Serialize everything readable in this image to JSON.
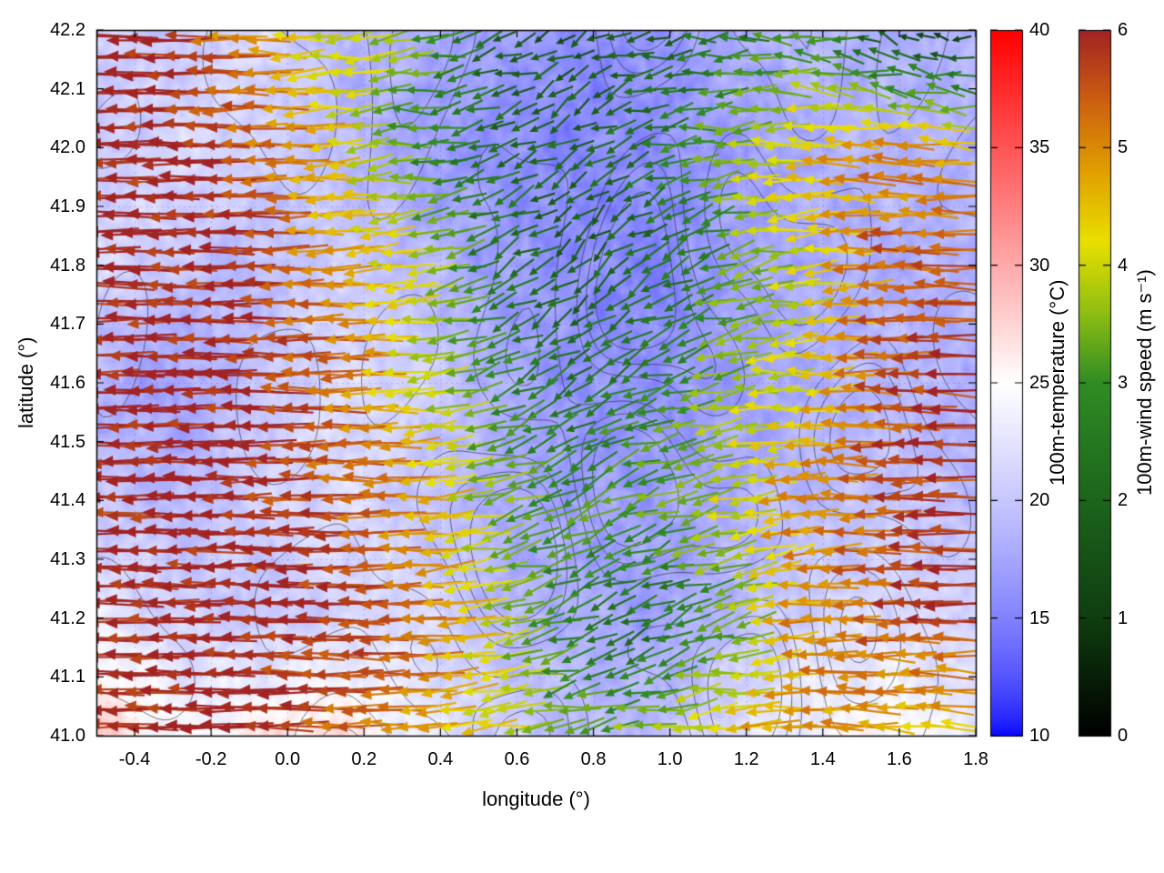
{
  "figure": {
    "background_color": "#ffffff",
    "plot_border_color": "#000000",
    "grid_color": "#8888cc"
  },
  "chart_data": {
    "type": "heatmap",
    "layers": [
      "temperature_heatmap",
      "terrain_contours",
      "wind_vectors"
    ],
    "title": "",
    "xlabel": "longitude (°)",
    "ylabel": "latitude (°)",
    "xlim": [
      -0.5,
      1.8
    ],
    "ylim": [
      41.0,
      42.2
    ],
    "grid": true,
    "x_ticks": [
      -0.4,
      -0.2,
      0.0,
      0.2,
      0.4,
      0.6,
      0.8,
      1.0,
      1.2,
      1.4,
      1.6,
      1.8
    ],
    "x_tick_labels": [
      "-0.4",
      "-0.2",
      "0.0",
      "0.2",
      "0.4",
      "0.6",
      "0.8",
      "1.0",
      "1.2",
      "1.4",
      "1.6",
      "1.8"
    ],
    "y_ticks": [
      41.0,
      41.1,
      41.2,
      41.3,
      41.4,
      41.5,
      41.6,
      41.7,
      41.8,
      41.9,
      42.0,
      42.1,
      42.2
    ],
    "y_tick_labels": [
      "41.0",
      "41.1",
      "41.2",
      "41.3",
      "41.4",
      "41.5",
      "41.6",
      "41.7",
      "41.8",
      "41.9",
      "42.0",
      "42.1",
      "42.2"
    ],
    "colorbars": [
      {
        "label": "100m-temperature (°C)",
        "range": [
          10,
          40
        ],
        "ticks": [
          10,
          15,
          20,
          25,
          30,
          35,
          40
        ],
        "tick_labels": [
          "10",
          "15",
          "20",
          "25",
          "30",
          "35",
          "40"
        ],
        "stops": [
          {
            "v": 10,
            "c": "#0000ff"
          },
          {
            "v": 25,
            "c": "#ffffff"
          },
          {
            "v": 40,
            "c": "#ff0000"
          }
        ]
      },
      {
        "label": "100m-wind speed (m s⁻¹)",
        "range": [
          0,
          6
        ],
        "ticks": [
          0,
          1,
          2,
          3,
          4,
          5,
          6
        ],
        "tick_labels": [
          "0",
          "1",
          "2",
          "3",
          "4",
          "5",
          "6"
        ],
        "stops": [
          {
            "v": 0.0,
            "c": "#000000"
          },
          {
            "v": 1.0,
            "c": "#0f3d0f"
          },
          {
            "v": 2.0,
            "c": "#1c641c"
          },
          {
            "v": 3.0,
            "c": "#2f8c23"
          },
          {
            "v": 3.6,
            "c": "#8fbe12"
          },
          {
            "v": 4.2,
            "c": "#e8e000"
          },
          {
            "v": 4.8,
            "c": "#e0a000"
          },
          {
            "v": 5.4,
            "c": "#cc5f10"
          },
          {
            "v": 6.0,
            "c": "#a12323"
          }
        ]
      }
    ],
    "temperature_grid": {
      "units": "°C",
      "lat_top_to_bottom": [
        42.2,
        42.0,
        41.8,
        41.6,
        41.4,
        41.2,
        41.0
      ],
      "lon_left_to_right": [
        -0.5,
        -0.29,
        -0.08,
        0.13,
        0.34,
        0.55,
        0.76,
        0.96,
        1.17,
        1.38,
        1.59,
        1.8
      ],
      "values": [
        [
          21,
          20,
          22,
          19,
          18,
          17,
          16,
          16,
          18,
          19,
          18,
          19
        ],
        [
          20,
          22,
          21,
          19,
          17,
          16,
          15,
          16,
          17,
          18,
          19,
          18
        ],
        [
          22,
          20,
          19,
          21,
          19,
          17,
          16,
          15,
          17,
          18,
          18,
          19
        ],
        [
          18,
          17,
          20,
          22,
          21,
          18,
          16,
          16,
          17,
          18,
          19,
          18
        ],
        [
          20,
          19,
          21,
          22,
          20,
          18,
          17,
          17,
          18,
          19,
          20,
          19
        ],
        [
          23,
          21,
          20,
          21,
          22,
          19,
          18,
          17,
          19,
          21,
          22,
          21
        ],
        [
          28,
          24,
          26,
          27,
          23,
          21,
          19,
          19,
          22,
          24,
          25,
          23
        ]
      ]
    },
    "wind_grid": {
      "units": "m s⁻¹ / degrees (0=east, 90=north)",
      "lat_top_to_bottom": [
        42.2,
        42.0,
        41.8,
        41.6,
        41.4,
        41.2,
        41.0
      ],
      "lon_left_to_right": [
        -0.5,
        -0.29,
        -0.08,
        0.13,
        0.34,
        0.55,
        0.76,
        0.96,
        1.17,
        1.38,
        1.59,
        1.8
      ],
      "speed": [
        [
          6,
          6,
          5,
          4,
          3.5,
          2,
          1.5,
          1.8,
          2.5,
          3,
          1.2,
          1
        ],
        [
          6,
          6,
          5.5,
          4.5,
          3,
          2.2,
          2,
          2.5,
          3.5,
          4.5,
          5,
          4.5
        ],
        [
          6,
          6,
          6,
          5,
          4,
          2.5,
          1.8,
          2.2,
          3.2,
          4.2,
          5.5,
          5.5
        ],
        [
          6,
          6,
          6,
          5.5,
          4.2,
          3,
          2.4,
          2.8,
          3.6,
          4.2,
          5.5,
          6
        ],
        [
          6,
          6,
          6,
          5.5,
          5,
          3.6,
          3,
          3.4,
          4,
          5,
          5.5,
          6
        ],
        [
          6,
          6,
          6,
          6,
          5.5,
          4,
          2.6,
          2.2,
          3.2,
          5,
          5.5,
          6
        ],
        [
          6,
          6,
          6,
          5.5,
          5,
          4.2,
          3.2,
          3.6,
          4.4,
          5,
          4.6,
          4.2
        ]
      ],
      "dir_deg": [
        [
          180,
          180,
          178,
          182,
          185,
          200,
          210,
          190,
          180,
          175,
          160,
          170
        ],
        [
          180,
          179,
          181,
          183,
          188,
          200,
          215,
          195,
          182,
          178,
          177,
          176
        ],
        [
          180,
          180,
          180,
          181,
          186,
          205,
          225,
          215,
          195,
          183,
          179,
          179
        ],
        [
          180,
          180,
          180,
          180,
          184,
          198,
          212,
          198,
          186,
          180,
          178,
          178
        ],
        [
          180,
          180,
          180,
          180,
          182,
          193,
          206,
          198,
          189,
          182,
          180,
          180
        ],
        [
          180,
          180,
          180,
          180,
          181,
          190,
          200,
          208,
          193,
          184,
          180,
          180
        ],
        [
          180,
          179,
          180,
          180,
          181,
          186,
          190,
          185,
          182,
          179,
          177,
          177
        ]
      ]
    }
  }
}
